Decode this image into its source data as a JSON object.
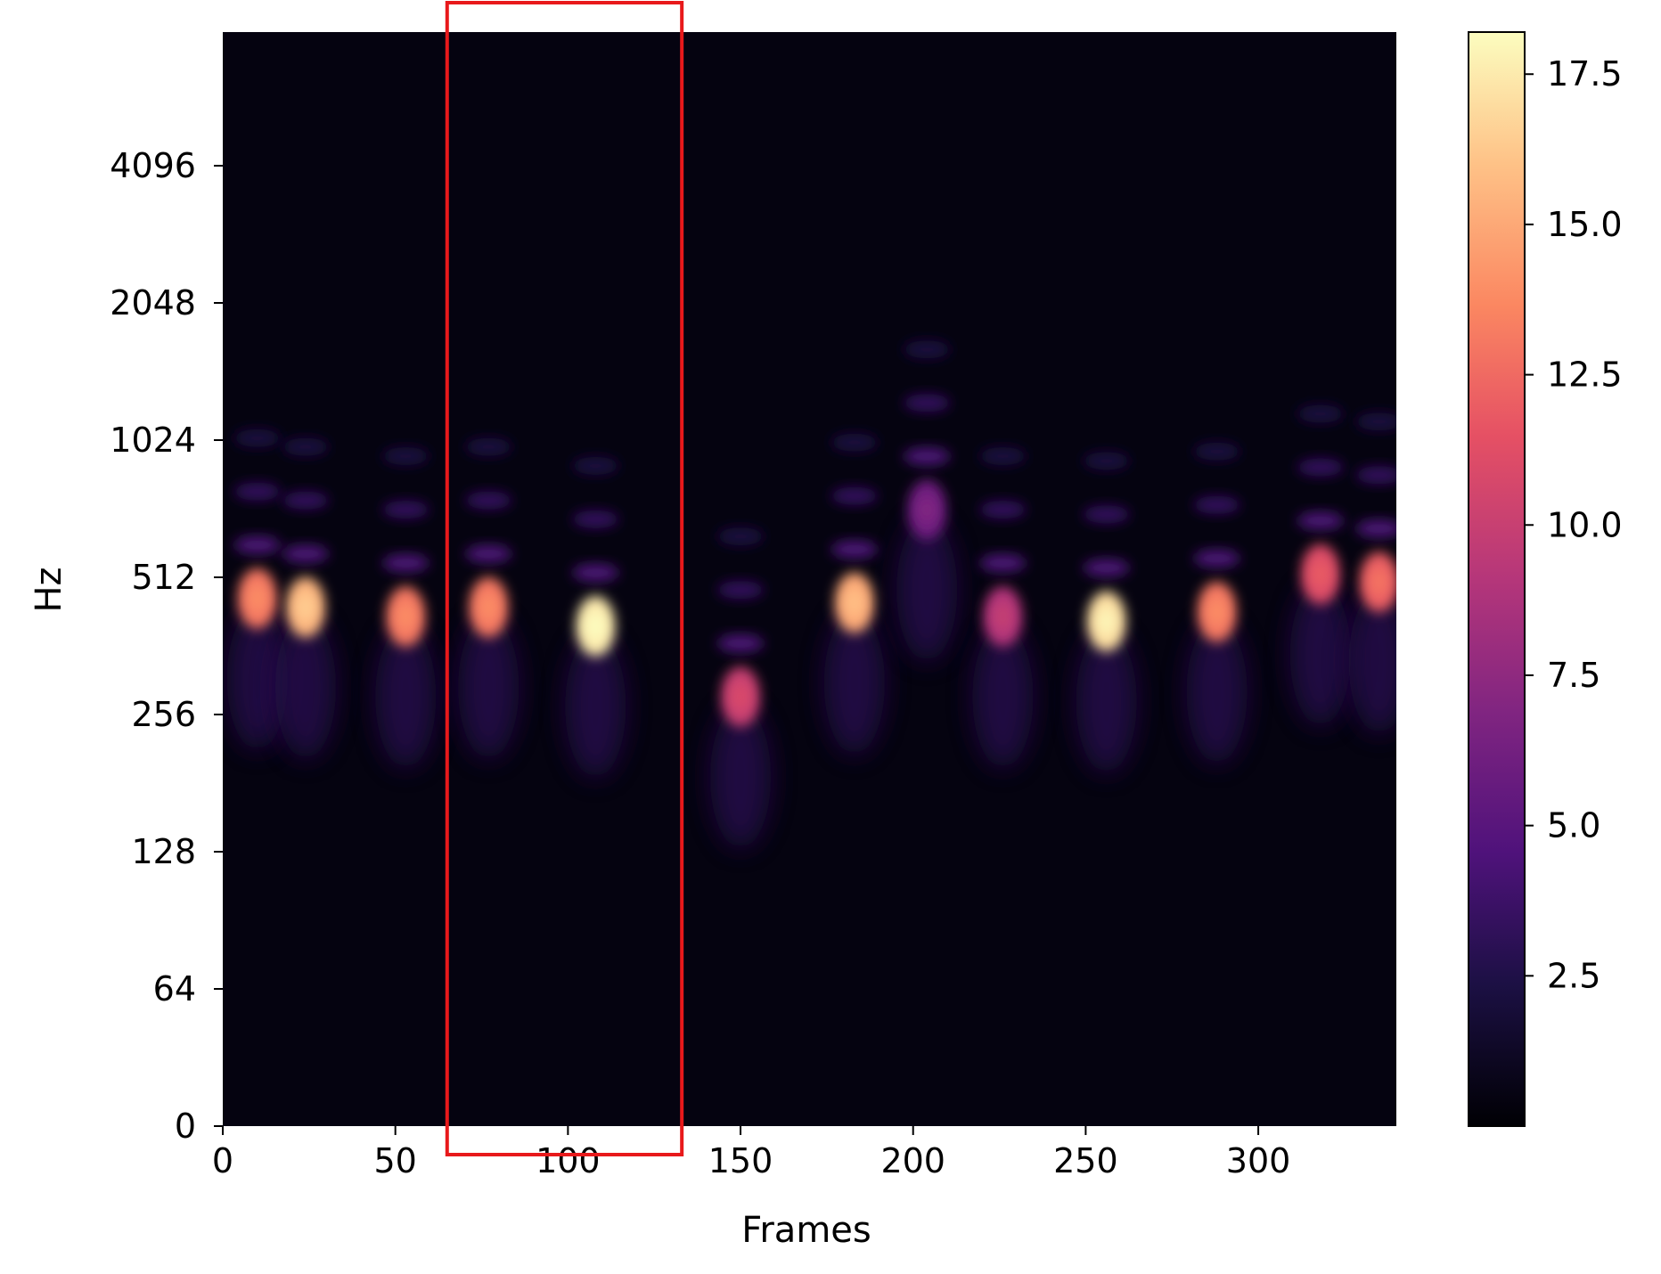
{
  "chart_data": {
    "type": "heatmap",
    "title": "",
    "xlabel": "Frames",
    "ylabel": "Hz",
    "xlim": [
      0,
      340
    ],
    "x_ticks": [
      0,
      50,
      100,
      150,
      200,
      250,
      300
    ],
    "y_scale": "log2 (with 0 at bottom)",
    "y_ticks": [
      "0",
      "64",
      "128",
      "256",
      "512",
      "1024",
      "2048",
      "4096"
    ],
    "colormap": "magma",
    "colorbar": {
      "range": [
        0,
        18.2
      ],
      "ticks": [
        "2.5",
        "5.0",
        "7.5",
        "10.0",
        "12.5",
        "15.0",
        "17.5"
      ]
    },
    "highlight_box": {
      "x_range": [
        65,
        133
      ],
      "color": "#e8191b"
    },
    "events": [
      {
        "frame": 10,
        "hz": 460,
        "value": 13
      },
      {
        "frame": 24,
        "hz": 440,
        "value": 15.5
      },
      {
        "frame": 53,
        "hz": 420,
        "value": 13
      },
      {
        "frame": 77,
        "hz": 440,
        "value": 13
      },
      {
        "frame": 108,
        "hz": 400,
        "value": 17.5
      },
      {
        "frame": 150,
        "hz": 280,
        "value": 10
      },
      {
        "frame": 183,
        "hz": 450,
        "value": 15
      },
      {
        "frame": 204,
        "hz": 720,
        "value": 6
      },
      {
        "frame": 226,
        "hz": 420,
        "value": 9
      },
      {
        "frame": 256,
        "hz": 410,
        "value": 17
      },
      {
        "frame": 288,
        "hz": 430,
        "value": 13
      },
      {
        "frame": 318,
        "hz": 520,
        "value": 11
      },
      {
        "frame": 335,
        "hz": 500,
        "value": 12
      }
    ]
  }
}
